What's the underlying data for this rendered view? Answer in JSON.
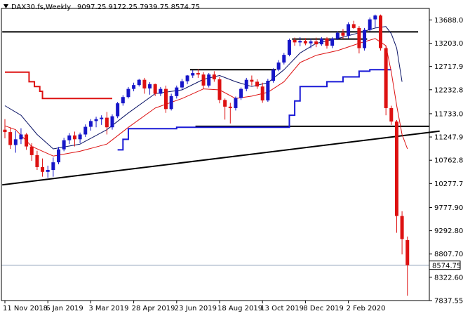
{
  "chart_data": {
    "type": "candlestick",
    "symbol": "DAX30.fs",
    "timeframe": "Weekly",
    "header_ohlc": {
      "open": "9097.25",
      "high": "9172.25",
      "low": "7939.75",
      "close": "8574.75"
    },
    "last_price_label": "8574.75",
    "ylim": [
      7837.55,
      13928
    ],
    "y_tick_labels": [
      "13688.00",
      "13203.00",
      "12717.90",
      "12232.80",
      "11733.00",
      "11247.90",
      "10762.80",
      "10277.70",
      "9777.90",
      "9292.80",
      "8807.70",
      "8322.60",
      "7837.55"
    ],
    "x_tick_labels": [
      "11 Nov 2018",
      "6 Jan 2019",
      "3 Mar 2019",
      "28 Apr 2019",
      "23 Jun 2019",
      "18 Aug 2019",
      "13 Oct 2019",
      "8 Dec 2019",
      "2 Feb 2020"
    ],
    "grid": false,
    "colors": {
      "up": "#1616c8",
      "down": "#dd1111",
      "red_line": "#dd1111",
      "blue_line": "#1a1ad6",
      "navy_line": "#0b1466",
      "trend_line": "#000000",
      "price_line": "#8a9bb5"
    },
    "candles": [
      [
        11400,
        11620,
        11220,
        11350
      ],
      [
        11350,
        11450,
        11000,
        11080
      ],
      [
        11080,
        11380,
        10920,
        11200
      ],
      [
        11200,
        11430,
        11100,
        11300
      ],
      [
        11300,
        11330,
        10980,
        11050
      ],
      [
        11050,
        11120,
        10750,
        10870
      ],
      [
        10870,
        10960,
        10560,
        10620
      ],
      [
        10620,
        10800,
        10420,
        10520
      ],
      [
        10520,
        10650,
        10400,
        10560
      ],
      [
        10560,
        10820,
        10420,
        10720
      ],
      [
        10720,
        11040,
        10680,
        10990
      ],
      [
        10990,
        11230,
        10950,
        11180
      ],
      [
        11180,
        11330,
        11100,
        11280
      ],
      [
        11280,
        11360,
        11050,
        11200
      ],
      [
        11200,
        11340,
        11120,
        11300
      ],
      [
        11300,
        11510,
        11250,
        11460
      ],
      [
        11460,
        11620,
        11380,
        11580
      ],
      [
        11580,
        11670,
        11450,
        11620
      ],
      [
        11620,
        11700,
        11500,
        11650
      ],
      [
        11650,
        11770,
        11300,
        11450
      ],
      [
        11450,
        11720,
        11400,
        11680
      ],
      [
        11680,
        11980,
        11640,
        11950
      ],
      [
        11950,
        12120,
        11900,
        12080
      ],
      [
        12080,
        12290,
        12050,
        12250
      ],
      [
        12250,
        12380,
        12200,
        12330
      ],
      [
        12330,
        12460,
        12300,
        12440
      ],
      [
        12440,
        12480,
        12150,
        12260
      ],
      [
        12260,
        12390,
        12130,
        12350
      ],
      [
        12350,
        12360,
        12100,
        12150
      ],
      [
        12150,
        12290,
        12100,
        12250
      ],
      [
        12250,
        12320,
        11750,
        11830
      ],
      [
        11830,
        12150,
        11800,
        12100
      ],
      [
        12100,
        12320,
        12050,
        12280
      ],
      [
        12280,
        12460,
        12230,
        12410
      ],
      [
        12410,
        12540,
        12350,
        12530
      ],
      [
        12530,
        12640,
        12480,
        12580
      ],
      [
        12580,
        12660,
        12480,
        12550
      ],
      [
        12550,
        12600,
        12250,
        12320
      ],
      [
        12320,
        12580,
        12280,
        12550
      ],
      [
        12550,
        12620,
        12400,
        12450
      ],
      [
        12450,
        12500,
        11950,
        12020
      ],
      [
        12020,
        12050,
        11610,
        11880
      ],
      [
        11880,
        11960,
        11530,
        11850
      ],
      [
        11850,
        12090,
        11800,
        12060
      ],
      [
        12060,
        12280,
        12020,
        12250
      ],
      [
        12250,
        12480,
        12200,
        12440
      ],
      [
        12440,
        12530,
        12320,
        12400
      ],
      [
        12400,
        12450,
        12250,
        12300
      ],
      [
        12300,
        12380,
        11960,
        12010
      ],
      [
        12010,
        12460,
        11980,
        12420
      ],
      [
        12420,
        12680,
        12380,
        12650
      ],
      [
        12650,
        12850,
        12620,
        12800
      ],
      [
        12800,
        13000,
        12760,
        12960
      ],
      [
        12960,
        13300,
        12930,
        13270
      ],
      [
        13270,
        13320,
        13150,
        13220
      ],
      [
        13220,
        13330,
        13140,
        13250
      ],
      [
        13250,
        13310,
        13160,
        13200
      ],
      [
        13200,
        13300,
        13100,
        13240
      ],
      [
        13240,
        13320,
        13120,
        13180
      ],
      [
        13180,
        13330,
        13150,
        13300
      ],
      [
        13300,
        13330,
        13090,
        13150
      ],
      [
        13150,
        13330,
        13100,
        13300
      ],
      [
        13300,
        13450,
        13270,
        13420
      ],
      [
        13420,
        13500,
        13300,
        13360
      ],
      [
        13360,
        13640,
        13300,
        13600
      ],
      [
        13600,
        13670,
        13500,
        13520
      ],
      [
        13520,
        13560,
        12990,
        13100
      ],
      [
        13100,
        13520,
        13050,
        13480
      ],
      [
        13480,
        13740,
        13450,
        13700
      ],
      [
        13700,
        13800,
        13530,
        13780
      ],
      [
        13780,
        13800,
        13050,
        13100
      ],
      [
        13100,
        13150,
        11700,
        11850
      ],
      [
        11850,
        11900,
        11500,
        11570
      ],
      [
        11570,
        11600,
        9250,
        9600
      ],
      [
        9600,
        9700,
        8800,
        9120
      ],
      [
        9097.25,
        9172.25,
        7939.75,
        8574.75
      ]
    ],
    "red_line": [
      [
        0,
        11480
      ],
      [
        2,
        11400
      ],
      [
        5,
        11050
      ],
      [
        9,
        10850
      ],
      [
        14,
        10950
      ],
      [
        19,
        11100
      ],
      [
        23,
        11450
      ],
      [
        28,
        11850
      ],
      [
        33,
        12050
      ],
      [
        37,
        12250
      ],
      [
        40,
        12230
      ],
      [
        43,
        12050
      ],
      [
        46,
        12100
      ],
      [
        49,
        12180
      ],
      [
        52,
        12400
      ],
      [
        55,
        12800
      ],
      [
        58,
        12950
      ],
      [
        62,
        13050
      ],
      [
        66,
        13200
      ],
      [
        69,
        13300
      ],
      [
        71,
        13150
      ],
      [
        72,
        12600
      ],
      [
        73,
        11900
      ],
      [
        74,
        11300
      ],
      [
        75,
        11000
      ]
    ],
    "navy_line": [
      [
        0,
        11900
      ],
      [
        3,
        11700
      ],
      [
        6,
        11300
      ],
      [
        9,
        11000
      ],
      [
        14,
        11100
      ],
      [
        19,
        11400
      ],
      [
        23,
        11750
      ],
      [
        28,
        12150
      ],
      [
        33,
        12230
      ],
      [
        37,
        12450
      ],
      [
        40,
        12530
      ],
      [
        43,
        12400
      ],
      [
        46,
        12300
      ],
      [
        49,
        12380
      ],
      [
        52,
        12650
      ],
      [
        55,
        13000
      ],
      [
        58,
        13200
      ],
      [
        62,
        13300
      ],
      [
        66,
        13420
      ],
      [
        69,
        13520
      ],
      [
        71,
        13550
      ],
      [
        72,
        13400
      ],
      [
        73,
        13100
      ],
      [
        74,
        12400
      ]
    ],
    "red_steps": [
      [
        0,
        12600
      ],
      [
        4,
        12600
      ],
      [
        4.5,
        12400
      ],
      [
        5.5,
        12300
      ],
      [
        6.5,
        12200
      ],
      [
        7,
        12050
      ],
      [
        20,
        12050
      ]
    ],
    "blue_steps": [
      [
        21,
        10980
      ],
      [
        22,
        11200
      ],
      [
        23,
        11420
      ],
      [
        32,
        11420
      ],
      [
        32,
        11450
      ],
      [
        35,
        11450
      ],
      [
        52,
        11450
      ],
      [
        53,
        11700
      ],
      [
        54,
        12000
      ],
      [
        55,
        12300
      ],
      [
        59,
        12300
      ],
      [
        60,
        12400
      ],
      [
        62,
        12400
      ],
      [
        63,
        12500
      ],
      [
        65,
        12500
      ],
      [
        66,
        12620
      ],
      [
        68,
        12650
      ],
      [
        72,
        12650
      ]
    ],
    "horizontal_lines": [
      {
        "from": -0.5,
        "to": 77,
        "y": 13440
      },
      {
        "from": 34.5,
        "to": 50.5,
        "y": 12650
      },
      {
        "from": 53.5,
        "to": 67.5,
        "y": 13290
      },
      {
        "from": 35.5,
        "to": 81,
        "y": 11470
      }
    ],
    "trend_line": {
      "from": [
        -0.5,
        10250
      ],
      "to": [
        81,
        11370
      ]
    },
    "price_line_y": 8574.75
  }
}
